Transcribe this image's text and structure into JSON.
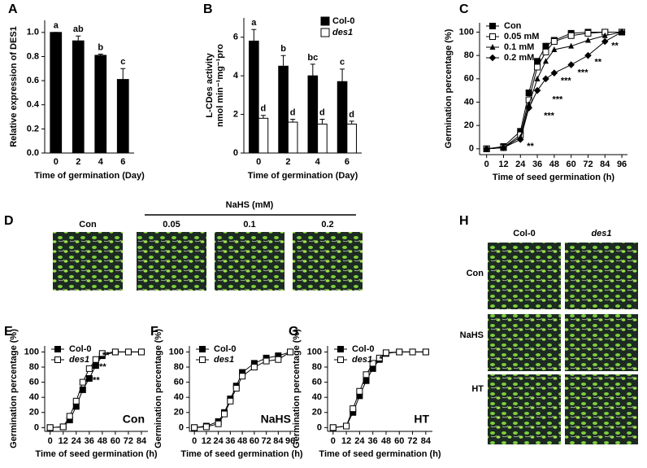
{
  "chart_data": [
    {
      "type": "bar",
      "label": "A",
      "ylabel": "Relative expression of DES1",
      "xlabel": "Time of germination (Day)",
      "categories": [
        "0",
        "2",
        "4",
        "6"
      ],
      "values": [
        1.0,
        0.93,
        0.81,
        0.61
      ],
      "errors": [
        0,
        0.04,
        0.01,
        0.09
      ],
      "letters": [
        "a",
        "ab",
        "b",
        "c"
      ],
      "color": "#000000",
      "ylim": [
        0,
        1.1
      ],
      "yticks": [
        {
          "value": 0,
          "label": "0.0"
        },
        {
          "value": 0.2,
          "label": "0.2"
        },
        {
          "value": 0.4,
          "label": "0.4"
        },
        {
          "value": 0.6,
          "label": "0.6"
        },
        {
          "value": 0.8,
          "label": "0.8"
        },
        {
          "value": 1,
          "label": "1.0"
        }
      ]
    },
    {
      "type": "bar",
      "label": "B",
      "ylabel": [
        "L-CDes activity",
        "nmol min⁻¹mg⁻¹pro"
      ],
      "xlabel": "Time of germination (Day)",
      "categories": [
        "0",
        "2",
        "4",
        "6"
      ],
      "legend": "upper right",
      "series": [
        {
          "name": "Col-0",
          "color": "#000000",
          "values": [
            5.8,
            4.5,
            4.0,
            3.7
          ],
          "errors": [
            0.6,
            0.55,
            0.6,
            0.65
          ],
          "letters": [
            "a",
            "b",
            "bc",
            "c"
          ]
        },
        {
          "name": "des1",
          "color": "#ffffff",
          "values": [
            1.8,
            1.6,
            1.5,
            1.5
          ],
          "errors": [
            0.15,
            0.15,
            0.25,
            0.15
          ],
          "letters": [
            "d",
            "d",
            "d",
            "d"
          ]
        }
      ],
      "ylim": [
        0,
        7
      ],
      "yticks": [
        0,
        2,
        4,
        6
      ]
    },
    {
      "type": "line",
      "label": "C",
      "ylabel": "Germination percentage (%)",
      "xlabel": "Time of seed germination (h)",
      "legend": "upper left",
      "x": [
        0,
        12,
        24,
        30,
        36,
        42,
        48,
        60,
        72,
        84,
        96
      ],
      "series": [
        {
          "name": "Con",
          "color": "#000000",
          "marker": "square",
          "values": [
            0,
            2,
            15,
            48,
            75,
            88,
            93,
            99,
            100,
            100,
            100
          ]
        },
        {
          "name": "0.05 mM",
          "color": "#000000",
          "marker": "square-open",
          "values": [
            0,
            1,
            12,
            42,
            70,
            83,
            92,
            97,
            99,
            100,
            100
          ]
        },
        {
          "name": "0.1 mM",
          "color": "#000000",
          "marker": "triangle",
          "values": [
            0,
            1,
            10,
            38,
            60,
            75,
            85,
            88,
            93,
            97,
            100
          ]
        },
        {
          "name": "0.2 mM",
          "color": "#000000",
          "marker": "diamond",
          "values": [
            0,
            1,
            8,
            35,
            50,
            60,
            65,
            72,
            80,
            92,
            100
          ]
        }
      ],
      "annotations": [
        {
          "text": "**",
          "x": 24,
          "y": 2
        },
        {
          "text": "***",
          "x": 36,
          "y": 28
        },
        {
          "text": "***",
          "x": 42,
          "y": 42
        },
        {
          "text": "***",
          "x": 48,
          "y": 58
        },
        {
          "text": "***",
          "x": 60,
          "y": 65
        },
        {
          "text": "**",
          "x": 72,
          "y": 74
        },
        {
          "text": "**",
          "x": 84,
          "y": 88
        }
      ],
      "xlim": [
        -5,
        100
      ],
      "xticks": [
        0,
        12,
        24,
        36,
        48,
        60,
        72,
        84,
        96
      ],
      "ylim": [
        -5,
        108
      ],
      "yticks": [
        0,
        20,
        40,
        60,
        80,
        100
      ]
    },
    {
      "type": "line",
      "label": "E",
      "ylabel": "Germination percentage (%)",
      "xlabel": "Time of seed germination (h)",
      "legend": "upper left",
      "corner_label": "Con",
      "x": [
        0,
        12,
        18,
        24,
        30,
        36,
        42,
        48,
        60,
        72,
        84
      ],
      "series": [
        {
          "name": "Col-0",
          "color": "#000000",
          "marker": "square",
          "values": [
            0,
            1,
            10,
            28,
            50,
            65,
            82,
            95,
            100,
            100,
            100
          ]
        },
        {
          "name": "des1",
          "color": "#000000",
          "marker": "square-open",
          "values": [
            0,
            1,
            15,
            35,
            60,
            78,
            90,
            98,
            100,
            100,
            100
          ]
        }
      ],
      "annotations": [
        {
          "text": "***",
          "x": 30,
          "y": 62
        },
        {
          "text": "***",
          "x": 36,
          "y": 80
        },
        {
          "text": "**",
          "x": 42,
          "y": 95
        }
      ],
      "xlim": [
        -5,
        90
      ],
      "xticks": [
        0,
        12,
        24,
        36,
        48,
        60,
        72,
        84
      ],
      "ylim": [
        -5,
        108
      ],
      "yticks": [
        0,
        20,
        40,
        60,
        80,
        100
      ]
    },
    {
      "type": "line",
      "label": "F",
      "ylabel": "Germination percentage (%)",
      "xlabel": "Time of seed germination (h)",
      "legend": "upper left",
      "corner_label": "NaHS",
      "x": [
        0,
        12,
        24,
        30,
        36,
        42,
        48,
        60,
        72,
        84,
        96
      ],
      "series": [
        {
          "name": "Col-0",
          "color": "#000000",
          "marker": "square",
          "values": [
            0,
            2,
            8,
            20,
            38,
            55,
            73,
            85,
            92,
            95,
            100
          ]
        },
        {
          "name": "des1",
          "color": "#000000",
          "marker": "square-open",
          "values": [
            0,
            1,
            5,
            18,
            35,
            52,
            68,
            80,
            88,
            90,
            100
          ]
        }
      ],
      "xlim": [
        -5,
        100
      ],
      "xticks": [
        0,
        12,
        24,
        36,
        48,
        60,
        72,
        84,
        96
      ],
      "ylim": [
        -5,
        108
      ],
      "yticks": [
        0,
        20,
        40,
        60,
        80,
        100
      ]
    },
    {
      "type": "line",
      "label": "G",
      "ylabel": "Germination percentage (%)",
      "xlabel": "Time of seed germination (h)",
      "legend": "upper left",
      "corner_label": "HT",
      "x": [
        0,
        12,
        18,
        24,
        30,
        36,
        42,
        48,
        60,
        72,
        84
      ],
      "series": [
        {
          "name": "Col-0",
          "color": "#000000",
          "marker": "square",
          "values": [
            0,
            2,
            20,
            42,
            62,
            78,
            90,
            98,
            100,
            100,
            100
          ]
        },
        {
          "name": "des1",
          "color": "#000000",
          "marker": "square-open",
          "values": [
            0,
            2,
            25,
            48,
            70,
            85,
            92,
            99,
            100,
            100,
            100
          ]
        }
      ],
      "annotations": [
        {
          "text": "*",
          "x": 36,
          "y": 90
        }
      ],
      "xlim": [
        -5,
        90
      ],
      "xticks": [
        0,
        12,
        24,
        36,
        48,
        60,
        72,
        84
      ],
      "ylim": [
        -5,
        108
      ],
      "yticks": [
        0,
        20,
        40,
        60,
        80,
        100
      ]
    }
  ],
  "photo_panels": {
    "D": {
      "label": "D",
      "header": "NaHS (mM)",
      "columns": [
        "Con",
        "0.05",
        "0.1",
        "0.2"
      ]
    },
    "H": {
      "label": "H",
      "columns": [
        "Col-0",
        "des1"
      ],
      "rows": [
        "Con",
        "NaHS",
        "HT"
      ]
    }
  }
}
